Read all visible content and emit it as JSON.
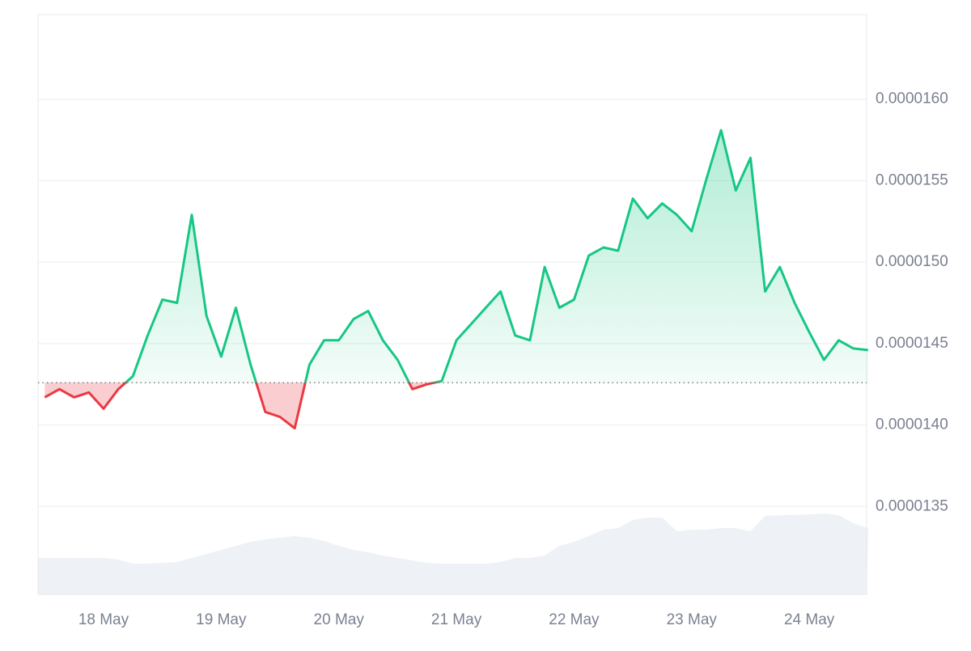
{
  "chart_data": {
    "type": "line",
    "categories": [
      null,
      null,
      null,
      null,
      "18 May",
      null,
      null,
      null,
      null,
      null,
      null,
      null,
      "19 May",
      null,
      null,
      null,
      null,
      null,
      null,
      null,
      "20 May",
      null,
      null,
      null,
      null,
      null,
      null,
      null,
      "21 May",
      null,
      null,
      null,
      null,
      null,
      null,
      null,
      "22 May",
      null,
      null,
      null,
      null,
      null,
      null,
      null,
      "23 May",
      null,
      null,
      null,
      null,
      null,
      null,
      null,
      "24 May",
      null,
      null,
      null,
      null
    ],
    "values": [
      1.417e-05,
      1.422e-05,
      1.417e-05,
      1.42e-05,
      1.41e-05,
      1.422e-05,
      1.43e-05,
      1.455e-05,
      1.477e-05,
      1.475e-05,
      1.529e-05,
      1.467e-05,
      1.442e-05,
      1.472e-05,
      1.437e-05,
      1.408e-05,
      1.405e-05,
      1.398e-05,
      1.437e-05,
      1.452e-05,
      1.452e-05,
      1.465e-05,
      1.47e-05,
      1.452e-05,
      1.44e-05,
      1.422e-05,
      1.425e-05,
      1.427e-05,
      1.452e-05,
      1.462e-05,
      1.472e-05,
      1.482e-05,
      1.455e-05,
      1.452e-05,
      1.497e-05,
      1.472e-05,
      1.477e-05,
      1.504e-05,
      1.509e-05,
      1.507e-05,
      1.539e-05,
      1.527e-05,
      1.536e-05,
      1.529e-05,
      1.519e-05,
      1.551e-05,
      1.581e-05,
      1.544e-05,
      1.564e-05,
      1.482e-05,
      1.497e-05,
      1.475e-05,
      1.457e-05,
      1.44e-05,
      1.452e-05,
      1.447e-05,
      1.446e-05
    ],
    "color": "#16c784",
    "down_color": "#ea3943",
    "baseline": 1.426e-05,
    "ylim": [
      1.296e-05,
      1.652e-05
    ],
    "yticks": [
      {
        "value": 1.35e-05,
        "label": "0.0000135"
      },
      {
        "value": 1.4e-05,
        "label": "0.0000140"
      },
      {
        "value": 1.45e-05,
        "label": "0.0000145"
      },
      {
        "value": 1.5e-05,
        "label": "0.0000150"
      },
      {
        "value": 1.55e-05,
        "label": "0.0000155"
      },
      {
        "value": 1.6e-05,
        "label": "0.0000160"
      }
    ],
    "grid": true,
    "volume": {
      "color": "#eef1f5",
      "ylim": [
        0,
        100
      ],
      "values": [
        45,
        45,
        45,
        45,
        45,
        43,
        38,
        38,
        39,
        40,
        45,
        50,
        55,
        60,
        65,
        68,
        70,
        72,
        70,
        66,
        60,
        55,
        52,
        48,
        45,
        42,
        39,
        38,
        38,
        38,
        38,
        40,
        45,
        45,
        48,
        60,
        65,
        72,
        80,
        82,
        92,
        95,
        95,
        78,
        80,
        80,
        82,
        82,
        78,
        97,
        98,
        98,
        99,
        100,
        98,
        88,
        82
      ]
    }
  }
}
